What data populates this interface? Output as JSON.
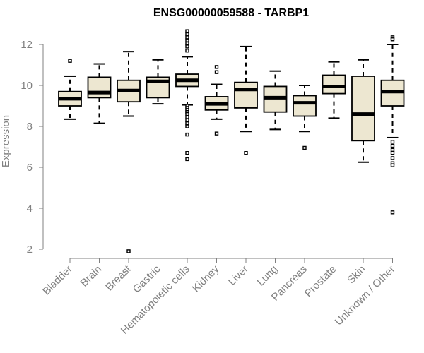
{
  "chart_data": {
    "type": "boxplot",
    "title": "ENSG00000059588 - TARBP1",
    "ylabel": "Expression",
    "xlabel": "",
    "ylim": [
      1.8,
      12.8
    ],
    "yticks": [
      2,
      4,
      6,
      8,
      10,
      12
    ],
    "colors": {
      "box_fill": "#ede7d1",
      "box_stroke": "#000000",
      "axis": "#808080",
      "median": "#000000"
    },
    "categories": [
      "Bladder",
      "Brain",
      "Breast",
      "Gastric",
      "Hematopoietic cells",
      "Kidney",
      "Liver",
      "Lung",
      "Pancreas",
      "Prostate",
      "Skin",
      "Unknown / Other"
    ],
    "boxes": [
      {
        "category": "Bladder",
        "whisker_low": 8.35,
        "q1": 9.0,
        "median": 9.35,
        "q3": 9.7,
        "whisker_high": 10.45,
        "outliers": [
          11.2
        ]
      },
      {
        "category": "Brain",
        "whisker_low": 8.15,
        "q1": 9.4,
        "median": 9.65,
        "q3": 10.4,
        "whisker_high": 11.05,
        "outliers": []
      },
      {
        "category": "Breast",
        "whisker_low": 8.5,
        "q1": 9.2,
        "median": 9.75,
        "q3": 10.25,
        "whisker_high": 11.65,
        "outliers": [
          1.9
        ]
      },
      {
        "category": "Gastric",
        "whisker_low": 9.1,
        "q1": 9.4,
        "median": 10.2,
        "q3": 10.4,
        "whisker_high": 11.25,
        "outliers": []
      },
      {
        "category": "Hematopoietic cells",
        "whisker_low": 9.05,
        "q1": 9.95,
        "median": 10.25,
        "q3": 10.55,
        "whisker_high": 11.4,
        "outliers": [
          12.65,
          12.5,
          12.35,
          12.2,
          12.05,
          11.9,
          11.7,
          9.0,
          8.9,
          8.8,
          8.7,
          8.6,
          8.45,
          8.3,
          8.15,
          8.0,
          7.6,
          6.7,
          6.4
        ]
      },
      {
        "category": "Kidney",
        "whisker_low": 8.35,
        "q1": 8.8,
        "median": 9.1,
        "q3": 9.45,
        "whisker_high": 10.05,
        "outliers": [
          10.9,
          10.65,
          7.65
        ]
      },
      {
        "category": "Liver",
        "whisker_low": 7.75,
        "q1": 8.9,
        "median": 9.8,
        "q3": 10.15,
        "whisker_high": 11.9,
        "outliers": [
          6.7
        ]
      },
      {
        "category": "Lung",
        "whisker_low": 7.85,
        "q1": 8.7,
        "median": 9.4,
        "q3": 9.95,
        "whisker_high": 10.7,
        "outliers": []
      },
      {
        "category": "Pancreas",
        "whisker_low": 7.75,
        "q1": 8.5,
        "median": 9.15,
        "q3": 9.5,
        "whisker_high": 10.0,
        "outliers": [
          6.95
        ]
      },
      {
        "category": "Prostate",
        "whisker_low": 8.4,
        "q1": 9.6,
        "median": 9.95,
        "q3": 10.5,
        "whisker_high": 11.15,
        "outliers": []
      },
      {
        "category": "Skin",
        "whisker_low": 6.25,
        "q1": 7.3,
        "median": 8.6,
        "q3": 10.45,
        "whisker_high": 11.25,
        "outliers": []
      },
      {
        "category": "Unknown / Other",
        "whisker_low": 7.45,
        "q1": 9.0,
        "median": 9.7,
        "q3": 10.25,
        "whisker_high": 12.0,
        "outliers": [
          12.35,
          12.25,
          7.25,
          7.05,
          6.85,
          6.7,
          6.45,
          6.2,
          6.1,
          3.8
        ]
      }
    ]
  }
}
